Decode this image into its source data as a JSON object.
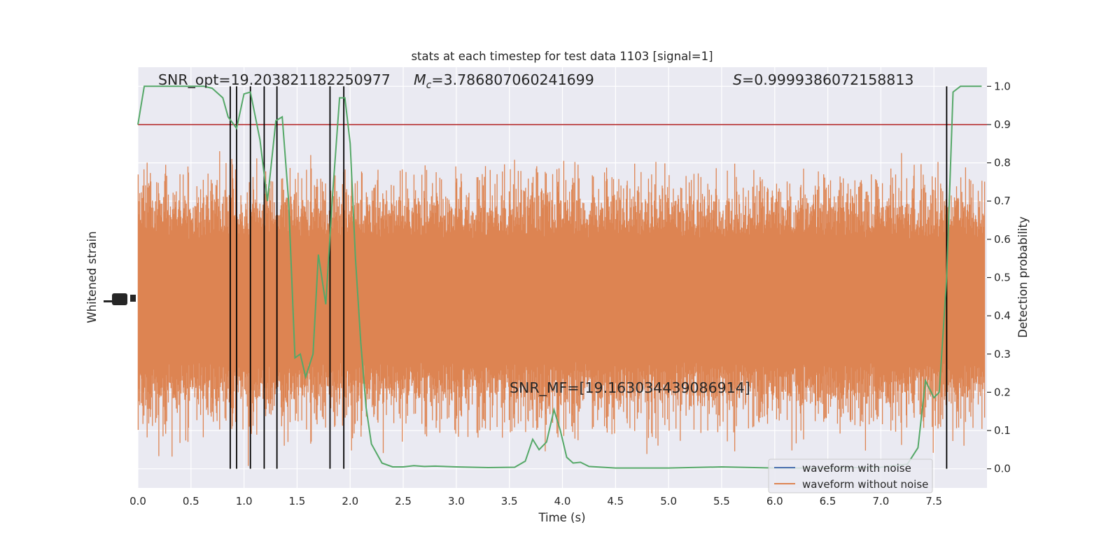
{
  "chart_data": {
    "type": "line",
    "title": "stats at each timestep for test data 1103 [signal=1]",
    "xlabel": "Time (s)",
    "ylabel_left": "Whitened strain",
    "ylabel_right": "Detection probability",
    "xlim": [
      0.0,
      8.0
    ],
    "ylim_right": [
      -0.05,
      1.05
    ],
    "x_ticks": [
      "0.0",
      "0.5",
      "1.0",
      "1.5",
      "2.0",
      "2.5",
      "3.0",
      "3.5",
      "4.0",
      "4.5",
      "5.0",
      "5.5",
      "6.0",
      "6.5",
      "7.0",
      "7.5"
    ],
    "x_tick_values": [
      0.0,
      0.5,
      1.0,
      1.5,
      2.0,
      2.5,
      3.0,
      3.5,
      4.0,
      4.5,
      5.0,
      5.5,
      6.0,
      6.5,
      7.0,
      7.5
    ],
    "y_ticks_right": [
      "0.0",
      "0.1",
      "0.2",
      "0.3",
      "0.4",
      "0.5",
      "0.6",
      "0.7",
      "0.8",
      "0.9",
      "1.0"
    ],
    "y_tick_values_right": [
      0.0,
      0.1,
      0.2,
      0.3,
      0.4,
      0.5,
      0.6,
      0.7,
      0.8,
      0.9,
      1.0
    ],
    "grid": true,
    "legend_position": "bottom-right",
    "annotations": {
      "snr_opt": "SNR_opt=19.203821182250977",
      "mc_symbol": "M",
      "mc_subscript": "c",
      "mc_value": "=3.786807060241699",
      "s_symbol": "S",
      "s_value": "=0.9999386072158813",
      "snr_mf": "SNR_MF=[19.163034439086914]"
    },
    "threshold": 0.9,
    "detection_times": [
      0.87,
      0.93,
      1.06,
      1.19,
      1.31,
      1.81,
      1.94,
      7.62
    ],
    "series": [
      {
        "name": "waveform with noise",
        "color": "#4c72b0",
        "values": []
      },
      {
        "name": "waveform without noise",
        "color": "#dd8452",
        "description": "noise-like whitened strain filling the plot; extremes around 0.0 to 0.84 on the probability scale",
        "center": 0.44,
        "envelope_low": 0.18,
        "envelope_high": 0.72,
        "extreme_low": 0.0,
        "extreme_high": 0.84
      },
      {
        "name": "detection probability",
        "color": "#55a868",
        "x": [
          0.0,
          0.06,
          0.2,
          0.35,
          0.5,
          0.62,
          0.7,
          0.8,
          0.85,
          0.93,
          1.0,
          1.06,
          1.15,
          1.22,
          1.3,
          1.36,
          1.42,
          1.48,
          1.53,
          1.58,
          1.65,
          1.7,
          1.77,
          1.83,
          1.9,
          1.95,
          2.0,
          2.05,
          2.1,
          2.15,
          2.2,
          2.3,
          2.4,
          2.5,
          2.6,
          2.7,
          2.8,
          3.0,
          3.3,
          3.55,
          3.65,
          3.72,
          3.78,
          3.85,
          3.92,
          3.98,
          4.04,
          4.1,
          4.17,
          4.25,
          4.5,
          5.0,
          5.5,
          6.0,
          6.5,
          7.0,
          7.25,
          7.35,
          7.42,
          7.5,
          7.55,
          7.62,
          7.68,
          7.75,
          7.82,
          7.88,
          7.95
        ],
        "values": [
          0.9,
          1.0,
          1.0,
          1.0,
          1.0,
          1.0,
          0.995,
          0.97,
          0.92,
          0.89,
          0.98,
          0.985,
          0.86,
          0.7,
          0.91,
          0.92,
          0.7,
          0.29,
          0.3,
          0.24,
          0.3,
          0.56,
          0.43,
          0.7,
          0.97,
          0.97,
          0.85,
          0.55,
          0.33,
          0.16,
          0.065,
          0.015,
          0.005,
          0.005,
          0.008,
          0.006,
          0.007,
          0.005,
          0.003,
          0.004,
          0.02,
          0.077,
          0.05,
          0.07,
          0.154,
          0.1,
          0.03,
          0.015,
          0.017,
          0.006,
          0.002,
          0.002,
          0.005,
          0.002,
          0.002,
          0.004,
          0.012,
          0.055,
          0.23,
          0.186,
          0.2,
          0.5,
          0.985,
          1.0,
          1.0,
          1.0,
          1.0
        ]
      }
    ],
    "threshold_color": "#b22222",
    "detection_line_color": "#000000"
  }
}
